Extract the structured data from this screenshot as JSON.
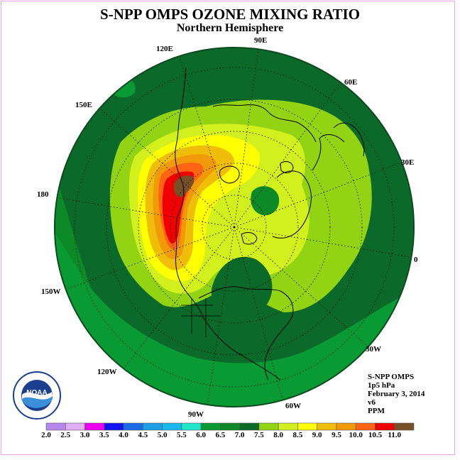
{
  "title": "S-NPP OMPS OZONE MIXING RATIO",
  "subtitle": "Northern Hemisphere",
  "longitude_labels": [
    "90E",
    "60E",
    "30E",
    "0",
    "30W",
    "60W",
    "90W",
    "120W",
    "150W",
    "180",
    "150E",
    "120E"
  ],
  "info": {
    "instrument": "S-NPP OMPS",
    "pressure": "1p5 hPa",
    "date": "February 3, 2014",
    "version": "v6",
    "units": "PPM"
  },
  "logo_text": "NOAA",
  "colorbar": {
    "ticks": [
      "2.0",
      "2.5",
      "3.0",
      "3.5",
      "4.0",
      "4.5",
      "5.0",
      "5.5",
      "6.0",
      "6.5",
      "7.0",
      "7.5",
      "8.0",
      "8.5",
      "9.0",
      "9.5",
      "10.0",
      "10.5",
      "11.0"
    ],
    "colors": [
      "#b787f0",
      "#e1aef5",
      "#f000f0",
      "#1414f0",
      "#1a6ce6",
      "#1e9ee6",
      "#19b9f0",
      "#21e6c8",
      "#0a9a33",
      "#0d8a28",
      "#0b6a2a",
      "#92d414",
      "#d2f01e",
      "#ffff00",
      "#f0be0a",
      "#f09a0a",
      "#ff6414",
      "#f00000",
      "#785028"
    ]
  }
}
